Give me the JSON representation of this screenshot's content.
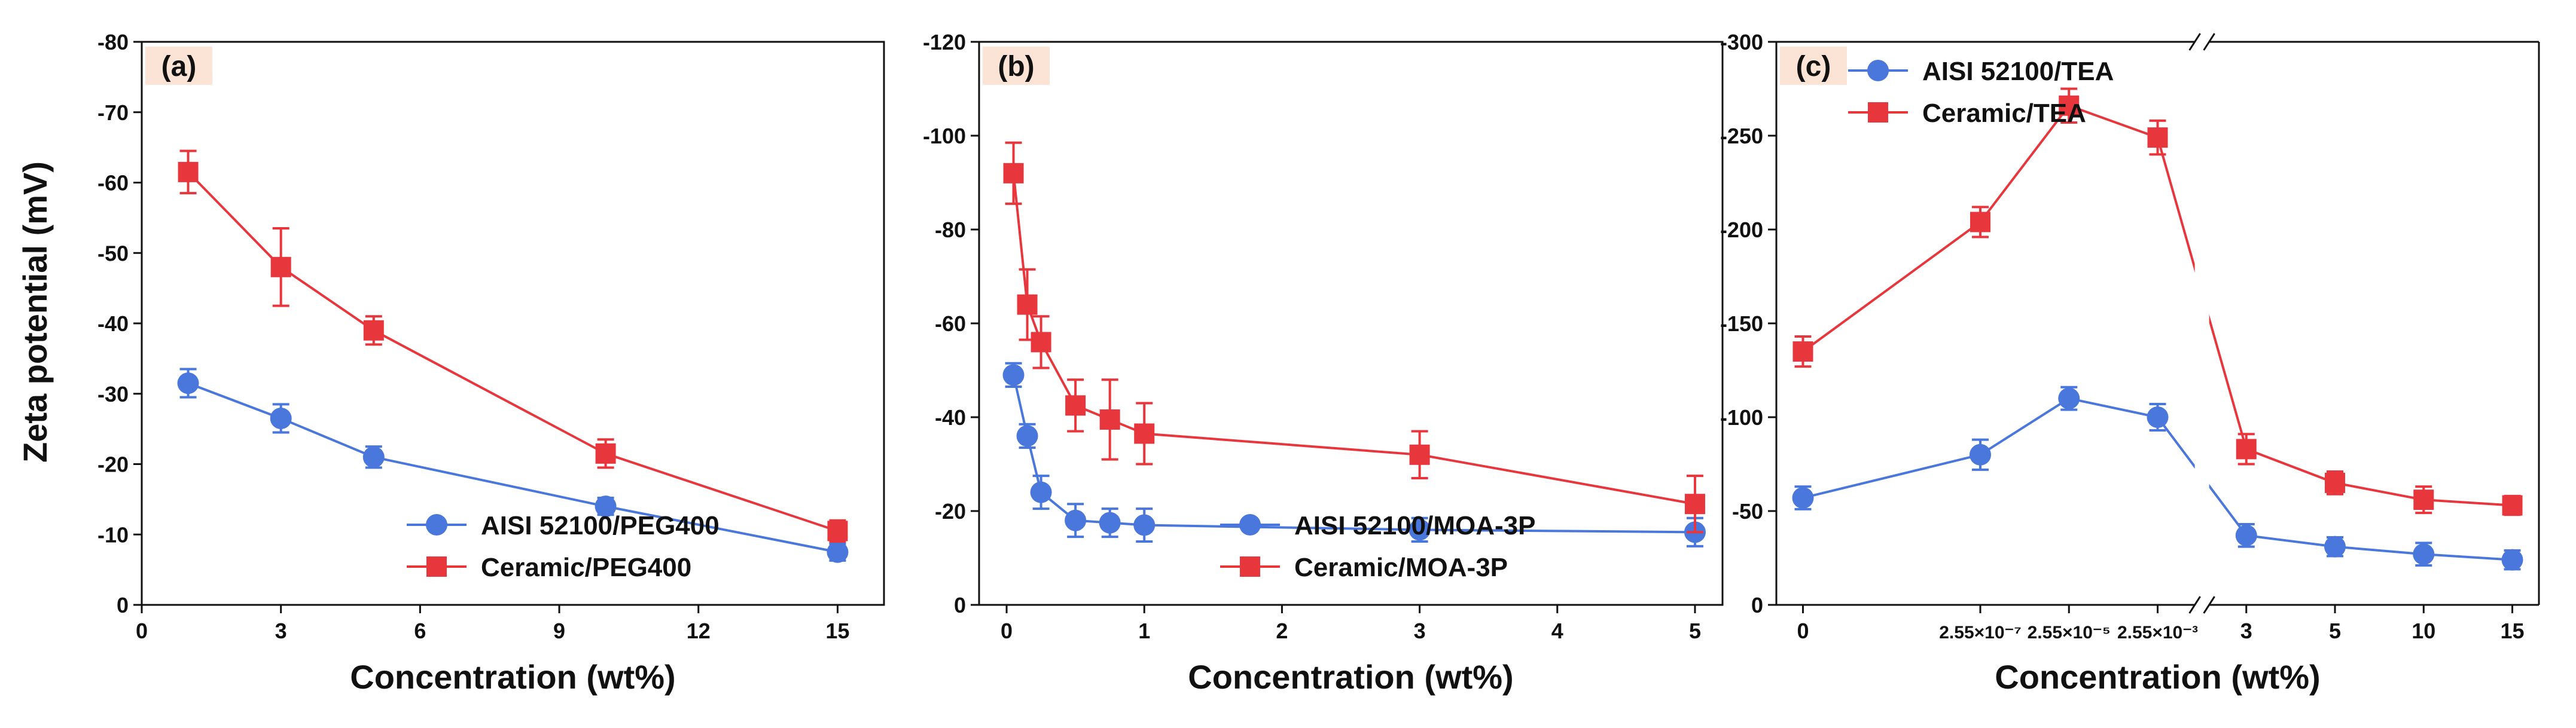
{
  "y_axis_title": "Zeta potential (mV)",
  "panels": [
    {
      "tag": "(a)",
      "xlabel": "Concentration (wt%)",
      "ylim": [
        -80,
        0
      ],
      "yticks": [
        0,
        -10,
        -20,
        -30,
        -40,
        -50,
        -60,
        -70,
        -80
      ],
      "xlim": [
        0,
        16
      ],
      "xticks": [
        {
          "v": 0,
          "label": "0"
        },
        {
          "v": 3,
          "label": "3"
        },
        {
          "v": 6,
          "label": "6"
        },
        {
          "v": 9,
          "label": "9"
        },
        {
          "v": 12,
          "label": "12"
        },
        {
          "v": 15,
          "label": "15"
        }
      ],
      "legend_position": "bottom-right"
    },
    {
      "tag": "(b)",
      "xlabel": "Concentration (wt%)",
      "ylim": [
        -120,
        0
      ],
      "yticks": [
        0,
        -20,
        -40,
        -60,
        -80,
        -100,
        -120
      ],
      "xlim": [
        -0.2,
        5.2
      ],
      "xticks": [
        {
          "v": 0,
          "label": "0"
        },
        {
          "v": 1,
          "label": "1"
        },
        {
          "v": 2,
          "label": "2"
        },
        {
          "v": 3,
          "label": "3"
        },
        {
          "v": 4,
          "label": "4"
        },
        {
          "v": 5,
          "label": "5"
        }
      ],
      "legend_position": "bottom-right"
    },
    {
      "tag": "(c)",
      "xlabel": "Concentration (wt%)",
      "ylim": [
        -300,
        0
      ],
      "yticks": [
        0,
        -50,
        -100,
        -150,
        -200,
        -250,
        -300
      ],
      "xlim": [
        -0.3,
        8.3
      ],
      "xticks": [
        {
          "v": 0,
          "label": "0"
        },
        {
          "v": 2,
          "label": "2.55×10⁻⁷"
        },
        {
          "v": 3,
          "label": "2.55×10⁻⁵"
        },
        {
          "v": 4,
          "label": "2.55×10⁻³"
        },
        {
          "v": 5,
          "label": "3"
        },
        {
          "v": 6,
          "label": "5"
        },
        {
          "v": 7,
          "label": "10"
        },
        {
          "v": 8,
          "label": "15"
        }
      ],
      "axis_break": "between 2.55×10⁻³ and 3",
      "legend_position": "top-left"
    }
  ],
  "chart_data": [
    {
      "type": "line",
      "x": [
        1,
        3,
        5,
        10,
        15
      ],
      "xlabel": "Concentration (wt%)",
      "ylabel": "Zeta potential (mV)",
      "ylim": [
        -80,
        0
      ],
      "series": [
        {
          "name": "AISI 52100/PEG400",
          "color": "#4a77dc",
          "marker": "circle",
          "values": [
            -31.5,
            -26.5,
            -21,
            -14,
            -7.5
          ],
          "errors": [
            2,
            2,
            1.5,
            1.2,
            1.2
          ]
        },
        {
          "name": "Ceramic/PEG400",
          "color": "#e8363d",
          "marker": "square",
          "values": [
            -61.5,
            -48,
            -39,
            -21.5,
            -10.5
          ],
          "errors": [
            3,
            5.5,
            2,
            2,
            1.5
          ]
        }
      ]
    },
    {
      "type": "line",
      "x": [
        0.05,
        0.15,
        0.25,
        0.5,
        0.75,
        1,
        3,
        5
      ],
      "xlabel": "Concentration (wt%)",
      "ylabel": "Zeta potential (mV)",
      "ylim": [
        -120,
        0
      ],
      "series": [
        {
          "name": "AISI 52100/MOA-3P",
          "color": "#4a77dc",
          "marker": "circle",
          "values": [
            -49,
            -36,
            -24,
            -18,
            -17.5,
            -17,
            -16,
            -15.5
          ],
          "errors": [
            2.5,
            2.5,
            3.5,
            3.5,
            3,
            3.5,
            2.5,
            3
          ]
        },
        {
          "name": "Ceramic/MOA-3P",
          "color": "#e8363d",
          "marker": "square",
          "values": [
            -92,
            -64,
            -56,
            -42.5,
            -39.5,
            -36.5,
            -32,
            -21.5
          ],
          "errors": [
            6.5,
            7.5,
            5.5,
            5.5,
            8.5,
            6.5,
            5,
            6
          ]
        }
      ]
    },
    {
      "type": "line",
      "x": [
        "0",
        "2.55×10⁻⁷",
        "2.55×10⁻⁵",
        "2.55×10⁻³",
        "3",
        "5",
        "10",
        "15"
      ],
      "xlabel": "Concentration (wt%)",
      "ylabel": "Zeta potential (mV)",
      "ylim": [
        -300,
        0
      ],
      "series": [
        {
          "name": "AISI 52100/TEA",
          "color": "#4a77dc",
          "marker": "circle",
          "values": [
            -57,
            -80,
            -110,
            -100,
            -37,
            -31,
            -27,
            -24
          ],
          "errors": [
            6,
            8,
            6,
            7,
            6,
            5,
            6,
            5
          ]
        },
        {
          "name": "Ceramic/TEA",
          "color": "#e8363d",
          "marker": "square",
          "values": [
            -135,
            -204,
            -266,
            -249,
            -83,
            -65,
            -56,
            -53
          ],
          "errors": [
            8,
            8,
            9,
            9,
            8,
            6,
            7,
            5
          ]
        }
      ]
    }
  ]
}
